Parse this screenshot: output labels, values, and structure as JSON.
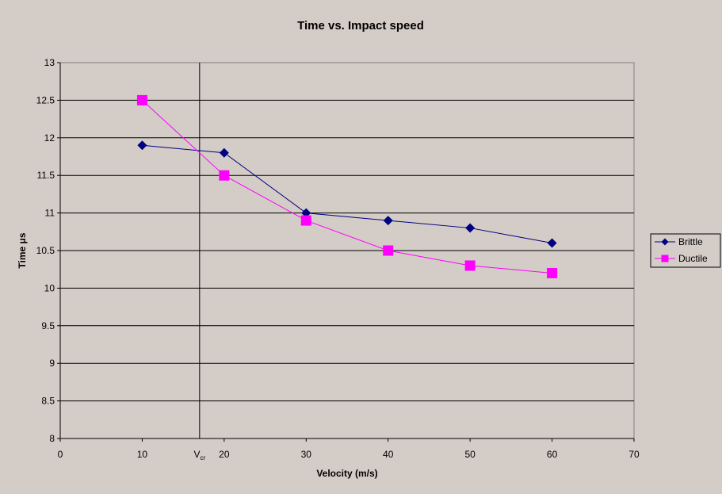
{
  "chart_data": {
    "type": "line",
    "title": "Time vs. Impact speed",
    "xlabel": "Velocity (m/s)",
    "ylabel": "Time μs",
    "xlim": [
      0,
      70
    ],
    "ylim": [
      8,
      13
    ],
    "x_ticks": [
      "0",
      "10",
      "20",
      "30",
      "40",
      "50",
      "60",
      "70"
    ],
    "y_ticks": [
      "8",
      "8.5",
      "9",
      "9.5",
      "10",
      "10.5",
      "11",
      "11.5",
      "12",
      "12.5",
      "13"
    ],
    "grid": "horizontal",
    "legend_position": "right",
    "annotation": {
      "label": "V",
      "subscript": "cr",
      "x": 17
    },
    "series": [
      {
        "name": "Brittle",
        "color": "#000080",
        "marker": "diamond",
        "x": [
          10,
          20,
          30,
          40,
          50,
          60
        ],
        "y": [
          11.9,
          11.8,
          11.0,
          10.9,
          10.8,
          10.6
        ]
      },
      {
        "name": "Ductile",
        "color": "#ff00ff",
        "marker": "square",
        "x": [
          10,
          20,
          30,
          40,
          50,
          60
        ],
        "y": [
          12.5,
          11.5,
          10.9,
          10.5,
          10.3,
          10.2
        ]
      }
    ]
  }
}
